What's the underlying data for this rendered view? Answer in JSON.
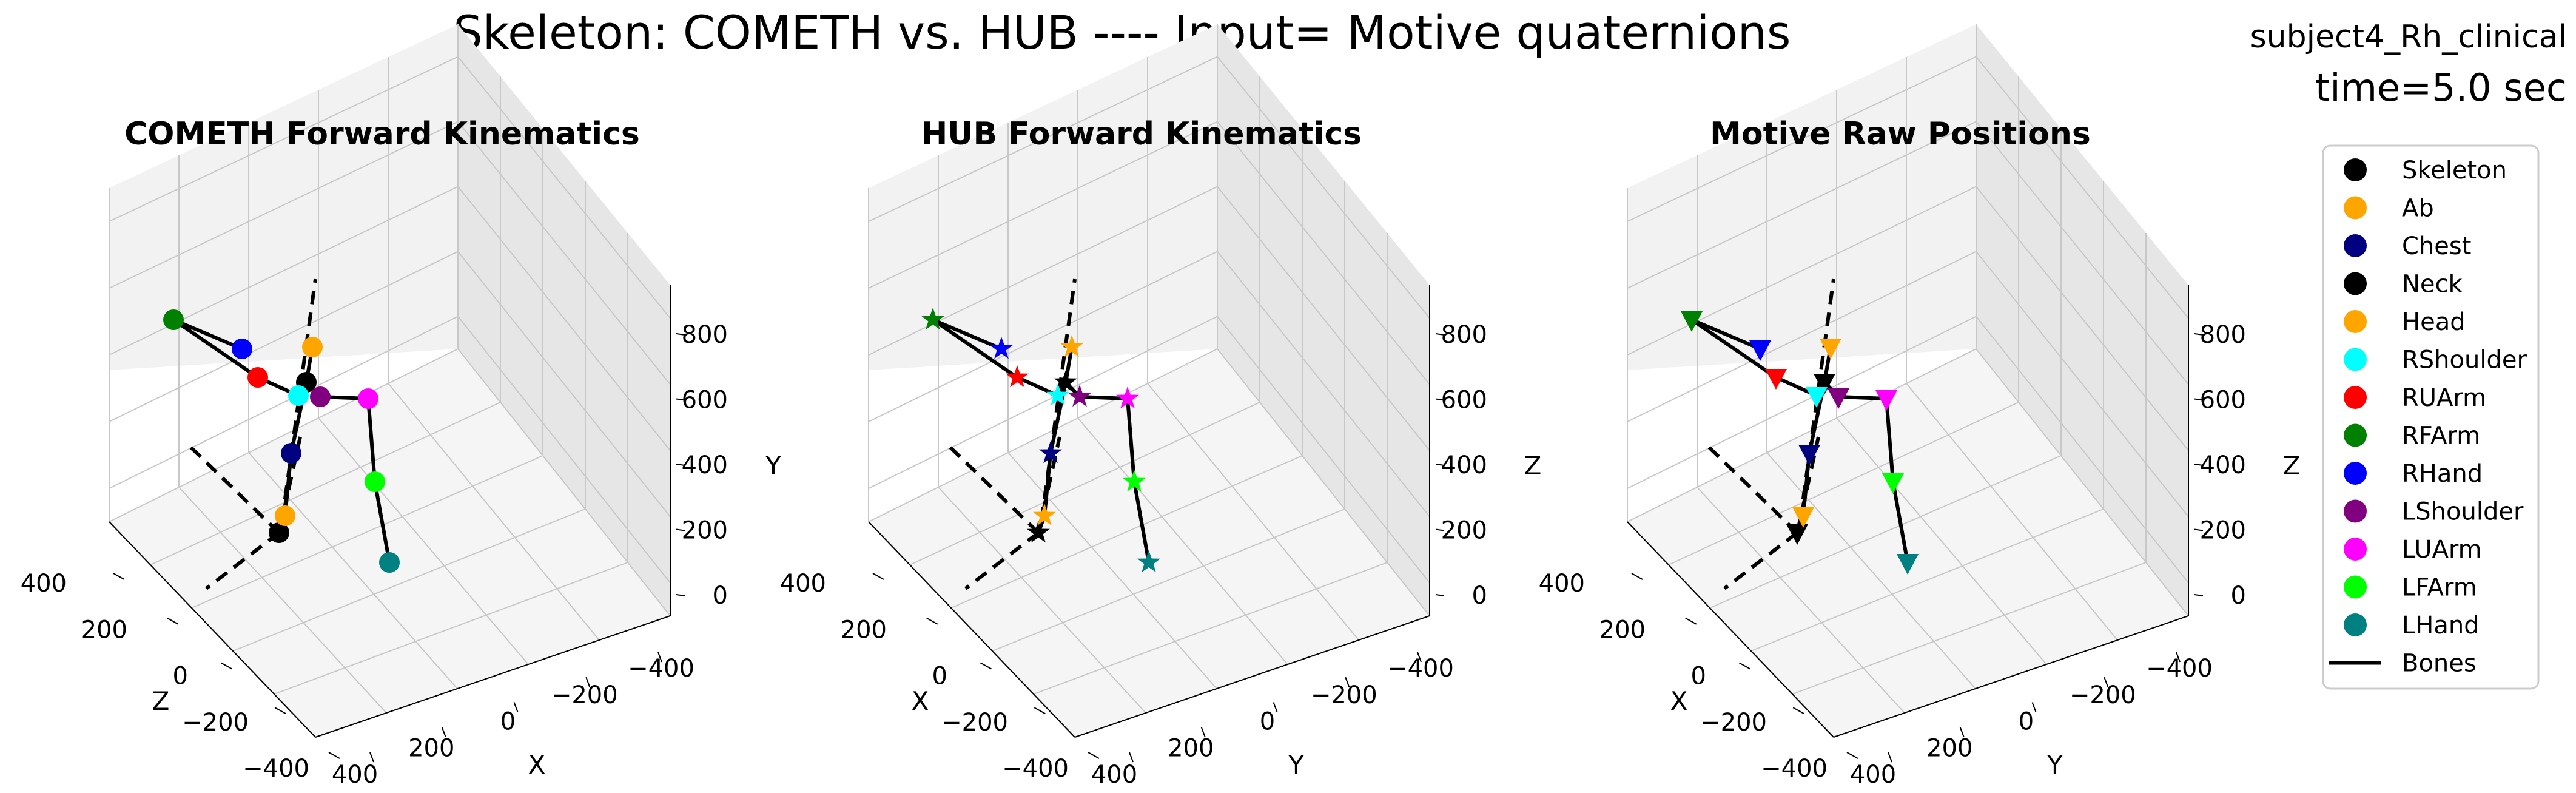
{
  "figure": {
    "suptitle": "Skeleton: COMETH vs. HUB ---- Input= Motive quaternions",
    "subject": "subject4_Rh_clinical",
    "time_label": "time=5.0 sec"
  },
  "legend": {
    "placement": "right",
    "entries": [
      {
        "label": "Skeleton",
        "color": "#000000",
        "kind": "dot"
      },
      {
        "label": "Ab",
        "color": "#ffa500",
        "kind": "dot"
      },
      {
        "label": "Chest",
        "color": "#000080",
        "kind": "dot"
      },
      {
        "label": "Neck",
        "color": "#000000",
        "kind": "dot"
      },
      {
        "label": "Head",
        "color": "#ffa500",
        "kind": "dot"
      },
      {
        "label": "RShoulder",
        "color": "#00ffff",
        "kind": "dot"
      },
      {
        "label": "RUArm",
        "color": "#ff0000",
        "kind": "dot"
      },
      {
        "label": "RFArm",
        "color": "#008000",
        "kind": "dot"
      },
      {
        "label": "RHand",
        "color": "#0000ff",
        "kind": "dot"
      },
      {
        "label": "LShoulder",
        "color": "#800080",
        "kind": "dot"
      },
      {
        "label": "LUArm",
        "color": "#ff00ff",
        "kind": "dot"
      },
      {
        "label": "LFArm",
        "color": "#00ff00",
        "kind": "dot"
      },
      {
        "label": "LHand",
        "color": "#008080",
        "kind": "dot"
      },
      {
        "label": "Bones",
        "color": "#000000",
        "kind": "line"
      }
    ]
  },
  "chart_data": [
    {
      "type": "scatter",
      "title": "COMETH Forward Kinematics",
      "marker": "circle",
      "axis_labels": {
        "a": "X",
        "b": "Z",
        "vertical": "Y"
      },
      "a_ticks": [
        "400",
        "200",
        "0",
        "−200",
        "−400"
      ],
      "b_ticks": [
        "400",
        "200",
        "0",
        "−200",
        "−400"
      ],
      "v_ticks": [
        "0",
        "200",
        "400",
        "600",
        "800"
      ],
      "grid": true
    },
    {
      "type": "scatter",
      "title": "HUB Forward Kinematics",
      "marker": "star",
      "axis_labels": {
        "a": "Y",
        "b": "X",
        "vertical": "Z"
      },
      "a_ticks": [
        "400",
        "200",
        "0",
        "−200",
        "−400"
      ],
      "b_ticks": [
        "400",
        "200",
        "0",
        "−200",
        "−400"
      ],
      "v_ticks": [
        "0",
        "200",
        "400",
        "600",
        "800"
      ],
      "grid": true
    },
    {
      "type": "scatter",
      "title": "Motive Raw Positions",
      "marker": "triangle-down",
      "axis_labels": {
        "a": "Y",
        "b": "X",
        "vertical": "Z"
      },
      "a_ticks": [
        "400",
        "200",
        "0",
        "−200",
        "−400"
      ],
      "b_ticks": [
        "400",
        "200",
        "0",
        "−200",
        "−400"
      ],
      "v_ticks": [
        "0",
        "200",
        "400",
        "600",
        "800"
      ],
      "grid": true
    }
  ]
}
